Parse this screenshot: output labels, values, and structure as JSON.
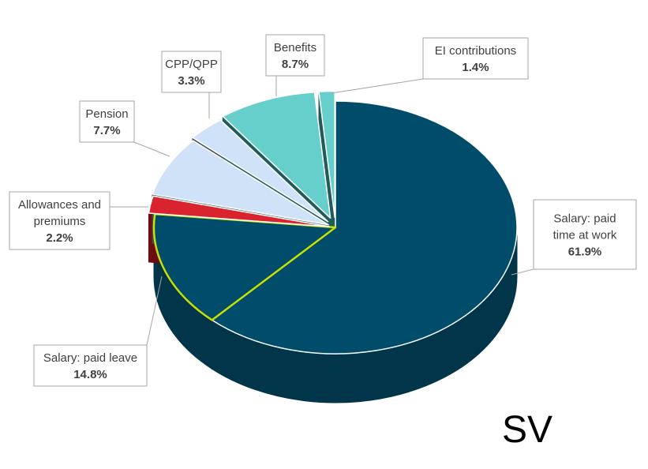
{
  "corner_tag": "SV",
  "chart_data": {
    "type": "pie",
    "style": "3d-exploded",
    "slices": [
      {
        "label": [
          "Salary: paid",
          "time at work"
        ],
        "value": 61.9,
        "pct_text": "61.9%",
        "color": "#004d6b",
        "side": "#00354a"
      },
      {
        "label": [
          "Salary: paid leave"
        ],
        "value": 14.8,
        "pct_text": "14.8%",
        "color": "#004d6b",
        "side": "#00354a",
        "outline": "#c8e000"
      },
      {
        "label": [
          "Allowances and",
          "premiums"
        ],
        "value": 2.2,
        "pct_text": "2.2%",
        "color": "#d9232e",
        "side": "#6b0d12"
      },
      {
        "label": [
          "Pension"
        ],
        "value": 7.7,
        "pct_text": "7.7%",
        "color": "#cfe2f7",
        "side": "#3f4a55"
      },
      {
        "label": [
          "CPP/QPP"
        ],
        "value": 3.3,
        "pct_text": "3.3%",
        "color": "#cfe2f7",
        "side": "#3f4a55"
      },
      {
        "label": [
          "Benefits"
        ],
        "value": 8.7,
        "pct_text": "8.7%",
        "color": "#66cfcc",
        "side": "#1f5c5a"
      },
      {
        "label": [
          "EI contributions"
        ],
        "value": 1.4,
        "pct_text": "1.4%",
        "color": "#66cfcc",
        "side": "#1f5c5a"
      }
    ]
  }
}
